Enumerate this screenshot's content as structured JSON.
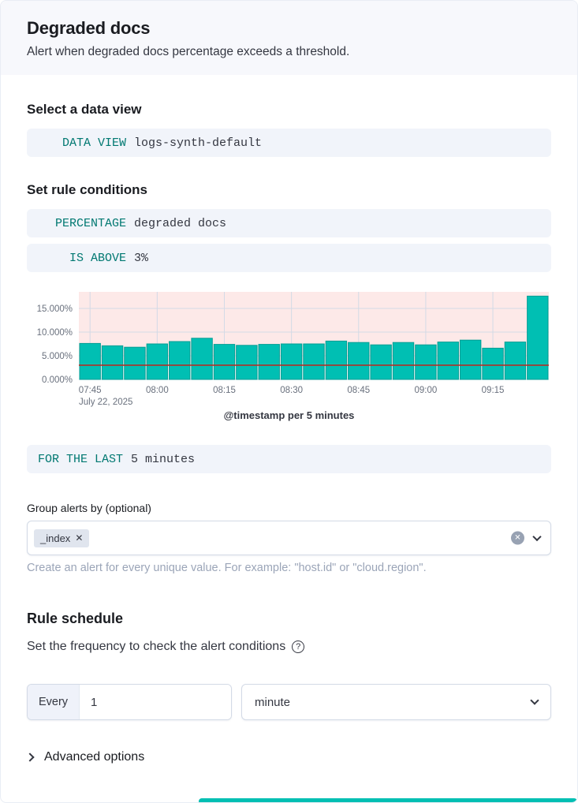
{
  "header": {
    "title": "Degraded docs",
    "subtitle": "Alert when degraded docs percentage exceeds a threshold."
  },
  "sections": {
    "data_view": {
      "heading": "Select a data view",
      "expression": {
        "label": "DATA VIEW",
        "value": "logs-synth-default"
      }
    },
    "conditions": {
      "heading": "Set rule conditions",
      "percentage_expression": {
        "label": "PERCENTAGE",
        "value": "degraded docs"
      },
      "threshold_expression": {
        "label": "IS ABOVE",
        "value": "3%"
      },
      "for_the_last_expression": {
        "label": "FOR THE LAST",
        "value": "5 minutes"
      }
    },
    "group_by": {
      "label": "Group alerts by (optional)",
      "selected": [
        {
          "label": "_index"
        }
      ],
      "help_text": "Create an alert for every unique value. For example: \"host.id\" or \"cloud.region\"."
    },
    "schedule": {
      "heading": "Rule schedule",
      "description": "Set the frequency to check the alert conditions",
      "every_label": "Every",
      "interval_value": "1",
      "unit_value": "minute"
    },
    "advanced": {
      "label": "Advanced options"
    }
  },
  "chart_data": {
    "type": "bar",
    "x": [
      "07:45",
      "07:50",
      "07:55",
      "08:00",
      "08:05",
      "08:10",
      "08:15",
      "08:20",
      "08:25",
      "08:30",
      "08:35",
      "08:40",
      "08:45",
      "08:50",
      "08:55",
      "09:00",
      "09:05",
      "09:10",
      "09:15",
      "09:20",
      "09:25"
    ],
    "values": [
      7.6,
      7.1,
      6.8,
      7.5,
      8.0,
      8.7,
      7.4,
      7.2,
      7.4,
      7.5,
      7.5,
      8.1,
      7.8,
      7.3,
      7.8,
      7.3,
      7.9,
      8.3,
      6.6,
      7.9,
      17.6
    ],
    "threshold": 3,
    "x_tick_labels": [
      "07:45",
      "08:00",
      "08:15",
      "08:30",
      "08:45",
      "09:00",
      "09:15"
    ],
    "x_subtitle": "July 22, 2025",
    "y_ticks": [
      0,
      5,
      10,
      15
    ],
    "y_tick_labels": [
      "0.000%",
      "5.000%",
      "10.000%",
      "15.000%"
    ],
    "ylim": [
      0,
      18.5
    ],
    "caption": "@timestamp per 5 minutes",
    "colors": {
      "bar": "#00BFB3",
      "bar_stroke": "#009E94",
      "threshold_line": "#BD271E",
      "above_threshold_fill": "rgba(240,78,65,0.12)",
      "grid": "#D3DAE6",
      "axis_text": "#69707D"
    }
  }
}
